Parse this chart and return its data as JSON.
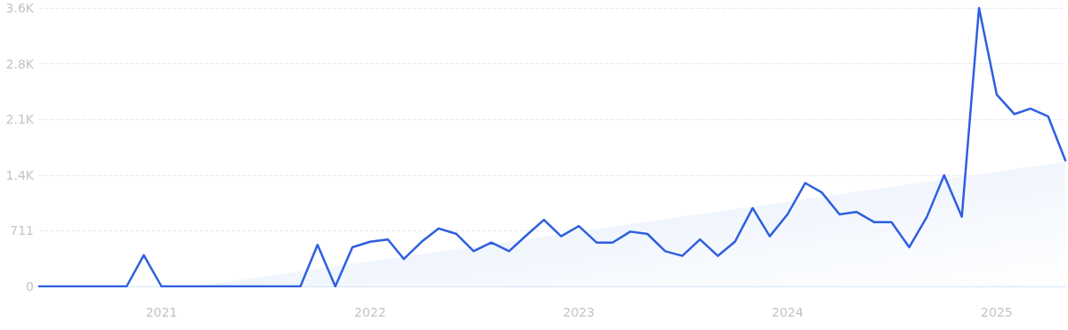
{
  "chart_data": {
    "type": "line",
    "x": [
      "2020-06",
      "2020-07",
      "2020-08",
      "2020-09",
      "2020-10",
      "2020-11",
      "2020-12",
      "2021-01",
      "2021-02",
      "2021-03",
      "2021-04",
      "2021-05",
      "2021-06",
      "2021-07",
      "2021-08",
      "2021-09",
      "2021-10",
      "2021-11",
      "2021-12",
      "2022-01",
      "2022-02",
      "2022-03",
      "2022-04",
      "2022-05",
      "2022-06",
      "2022-07",
      "2022-08",
      "2022-09",
      "2022-10",
      "2022-11",
      "2022-12",
      "2023-01",
      "2023-02",
      "2023-03",
      "2023-04",
      "2023-05",
      "2023-06",
      "2023-07",
      "2023-08",
      "2023-09",
      "2023-10",
      "2023-11",
      "2023-12",
      "2024-01",
      "2024-02",
      "2024-03",
      "2024-04",
      "2024-05",
      "2024-06",
      "2024-07",
      "2024-08",
      "2024-09",
      "2024-10",
      "2024-11",
      "2024-12",
      "2025-01",
      "2025-02",
      "2025-03",
      "2025-04",
      "2025-05"
    ],
    "series": [
      {
        "type": "area",
        "color": "#dfeafb",
        "x": [
          "2021-03",
          "2025-05"
        ],
        "values": [
          0,
          1590
        ]
      },
      {
        "color": "#2f5fe0",
        "values": [
          0,
          0,
          0,
          0,
          0,
          0,
          400,
          0,
          0,
          0,
          0,
          0,
          0,
          0,
          0,
          0,
          530,
          0,
          500,
          570,
          600,
          350,
          570,
          740,
          670,
          450,
          560,
          450,
          650,
          850,
          640,
          770,
          560,
          560,
          700,
          670,
          450,
          390,
          600,
          390,
          570,
          1000,
          640,
          920,
          1320,
          1200,
          920,
          950,
          820,
          820,
          500,
          890,
          1420,
          890,
          3555,
          2450,
          2200,
          2270,
          2170,
          1610
        ]
      }
    ],
    "xlim": [
      "2020-06",
      "2025-05"
    ],
    "xticks": [
      "2021",
      "2022",
      "2023",
      "2024",
      "2025"
    ],
    "ylim": [
      0,
      3555
    ],
    "yticks": [
      0,
      711,
      {
        "value": 1422,
        "label": "1.4K"
      },
      {
        "value": 2133,
        "label": "2.1K"
      },
      {
        "value": 2844,
        "label": "2.8K"
      },
      {
        "value": 3555,
        "label": "3.6K"
      }
    ],
    "grid": "y",
    "line_style": "solid",
    "marker": "none"
  }
}
